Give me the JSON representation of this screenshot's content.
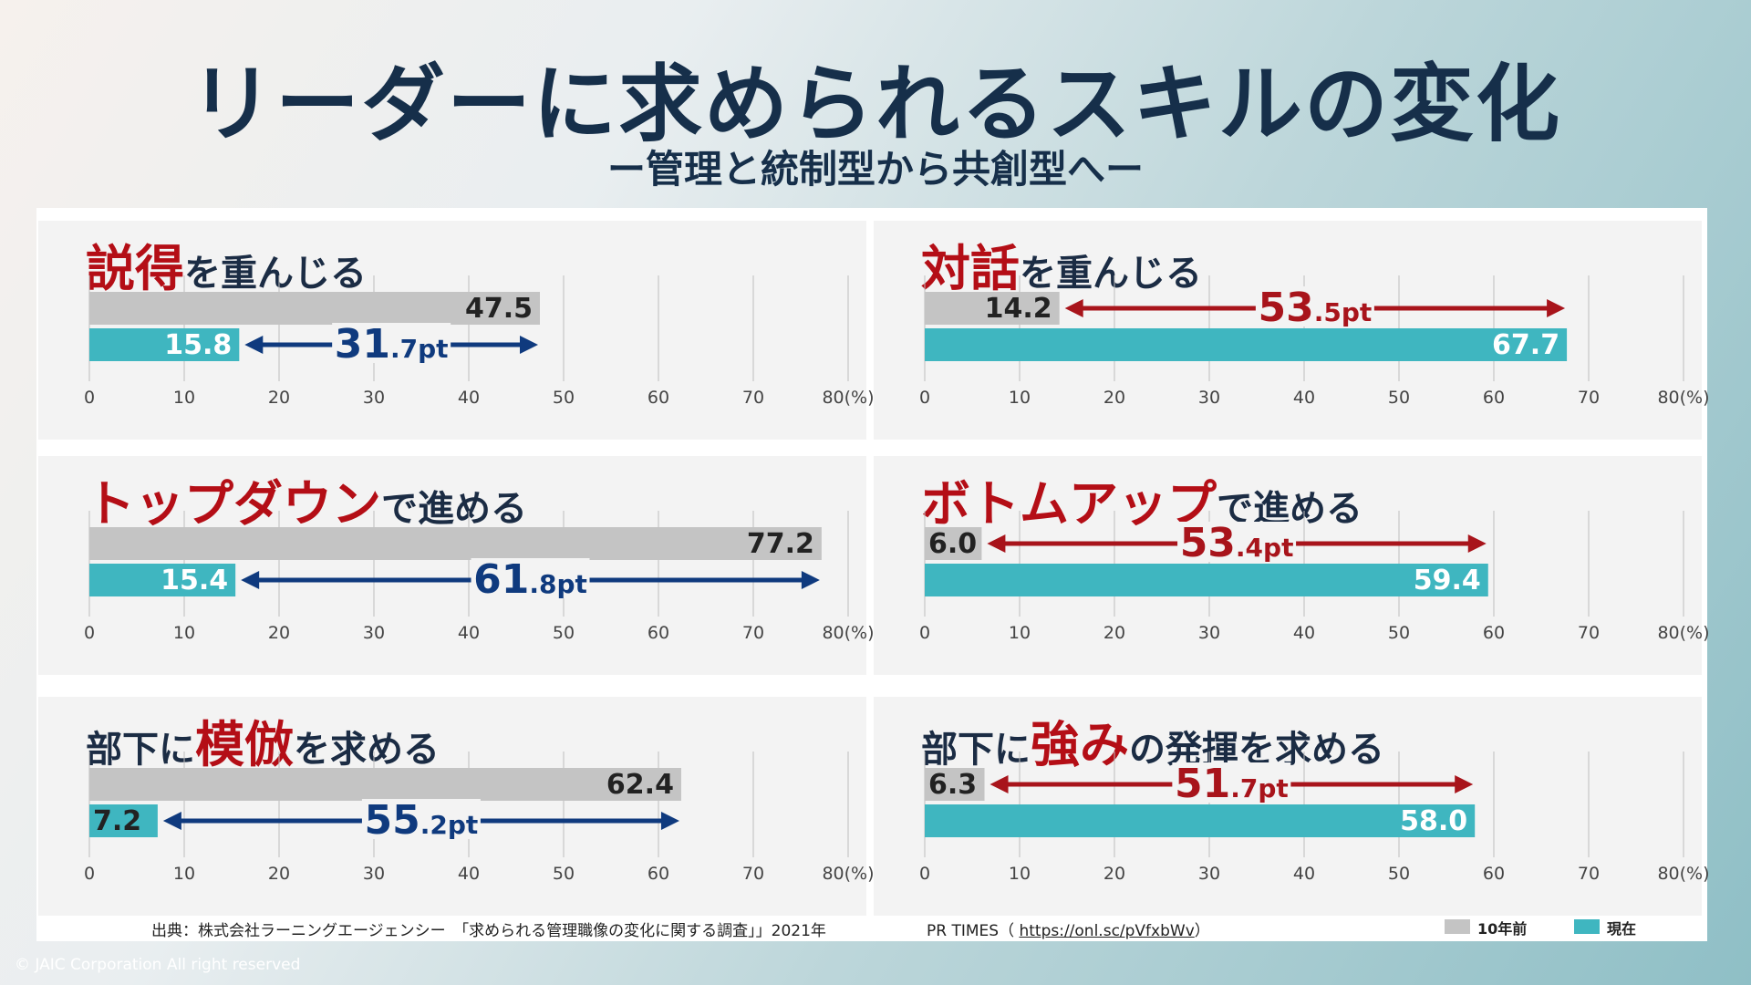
{
  "title": "リーダーに求められるスキルの変化",
  "subtitle": "ー管理と統制型から共創型へー",
  "colors": {
    "prior": "#c4c4c4",
    "current": "#3fb6c0",
    "old_style_accent": "#0f3a7e",
    "new_style_accent": "#a8141b",
    "heading_highlight": "#b40e16"
  },
  "chart_data": [
    {
      "type": "bar",
      "heading": {
        "pre": "",
        "highlight": "説得",
        "post": "を重んじる"
      },
      "series": [
        {
          "name": "10年前",
          "value": 47.5
        },
        {
          "name": "現在",
          "value": 15.8
        }
      ],
      "labels": [
        "47.5",
        "15.8"
      ],
      "difference": {
        "big": "31",
        "small": ".7pt"
      },
      "xlim": [
        0,
        80
      ],
      "ticks": [
        "0",
        "10",
        "20",
        "30",
        "40",
        "50",
        "60",
        "70",
        "80(%)"
      ]
    },
    {
      "type": "bar",
      "heading": {
        "pre": "",
        "highlight": "対話",
        "post": "を重んじる"
      },
      "series": [
        {
          "name": "10年前",
          "value": 14.2
        },
        {
          "name": "現在",
          "value": 67.7
        }
      ],
      "labels": [
        "14.2",
        "67.7"
      ],
      "difference": {
        "big": "53",
        "small": ".5pt"
      },
      "xlim": [
        0,
        80
      ],
      "ticks": [
        "0",
        "10",
        "20",
        "30",
        "40",
        "50",
        "60",
        "70",
        "80(%)"
      ]
    },
    {
      "type": "bar",
      "heading": {
        "pre": "",
        "highlight": "トップダウン",
        "post": "で進める"
      },
      "series": [
        {
          "name": "10年前",
          "value": 77.2
        },
        {
          "name": "現在",
          "value": 15.4
        }
      ],
      "labels": [
        "77.2",
        "15.4"
      ],
      "difference": {
        "big": "61",
        "small": ".8pt"
      },
      "xlim": [
        0,
        80
      ],
      "ticks": [
        "0",
        "10",
        "20",
        "30",
        "40",
        "50",
        "60",
        "70",
        "80(%)"
      ]
    },
    {
      "type": "bar",
      "heading": {
        "pre": "",
        "highlight": "ボトムアップ",
        "post": "で進める"
      },
      "series": [
        {
          "name": "10年前",
          "value": 6.0
        },
        {
          "name": "現在",
          "value": 59.4
        }
      ],
      "labels": [
        "6.0",
        "59.4"
      ],
      "difference": {
        "big": "53",
        "small": ".4pt"
      },
      "xlim": [
        0,
        80
      ],
      "ticks": [
        "0",
        "10",
        "20",
        "30",
        "40",
        "50",
        "60",
        "70",
        "80(%)"
      ]
    },
    {
      "type": "bar",
      "heading": {
        "pre": "部下に",
        "highlight": "模倣",
        "post": "を求める"
      },
      "series": [
        {
          "name": "10年前",
          "value": 62.4
        },
        {
          "name": "現在",
          "value": 7.2
        }
      ],
      "labels": [
        "62.4",
        "7.2"
      ],
      "difference": {
        "big": "55",
        "small": ".2pt"
      },
      "xlim": [
        0,
        80
      ],
      "ticks": [
        "0",
        "10",
        "20",
        "30",
        "40",
        "50",
        "60",
        "70",
        "80(%)"
      ]
    },
    {
      "type": "bar",
      "heading": {
        "pre": "部下に",
        "highlight": "強み",
        "post": "の発揮を求める"
      },
      "series": [
        {
          "name": "10年前",
          "value": 6.3
        },
        {
          "name": "現在",
          "value": 58.0
        }
      ],
      "labels": [
        "6.3",
        "58.0"
      ],
      "difference": {
        "big": "51",
        "small": ".7pt"
      },
      "xlim": [
        0,
        80
      ],
      "ticks": [
        "0",
        "10",
        "20",
        "30",
        "40",
        "50",
        "60",
        "70",
        "80(%)"
      ]
    }
  ],
  "footer": {
    "source": "出典：株式会社ラーニングエージェンシー　「求められる管理職像の変化に関する調査」」2021年",
    "pr_prefix": "PR TIMES（ ",
    "pr_link": "https://onl.sc/pVfxbWv",
    "pr_suffix": "）",
    "legend_prior": "10年前",
    "legend_current": "現在"
  },
  "copyright": "©    JAIC Corporation All right reserved"
}
